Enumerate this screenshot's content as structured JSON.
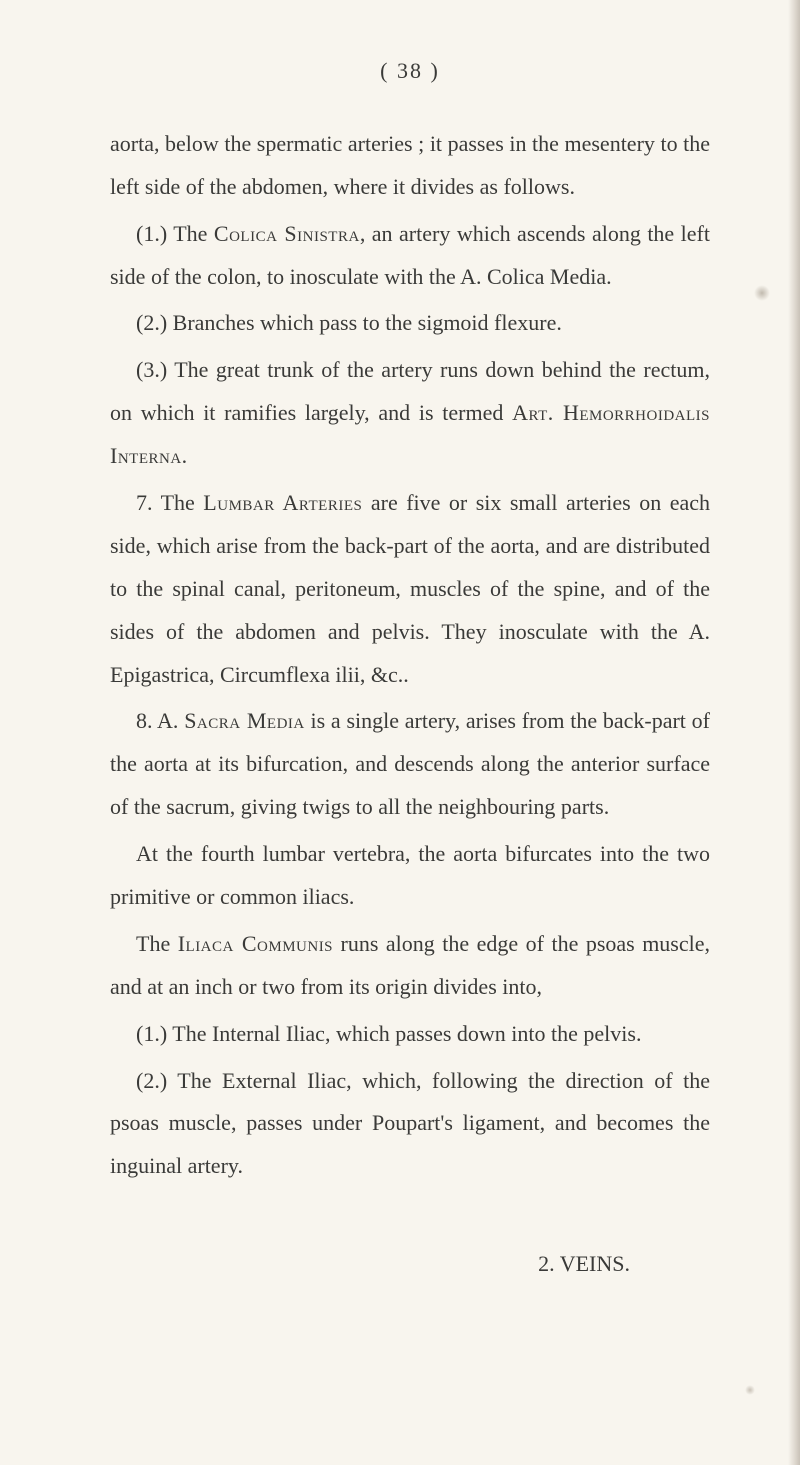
{
  "page": {
    "number_display": "(  38  )",
    "background_color": "#f8f5ee",
    "text_color": "#3a3a38",
    "font_size": 22,
    "line_height": 1.95
  },
  "paragraphs": {
    "p0": "aorta, below the spermatic arteries ; it passes in the mesentery to the left side of the abdomen, where it divides as follows.",
    "p1_open": "(1.) The ",
    "p1_sc": "Colica Sinistra",
    "p1_close": ", an artery which ascends along the left side of the colon, to inosculate with the A. Colica Media.",
    "p2": "(2.) Branches which pass to the sigmoid flexure.",
    "p3_open": "(3.) The great trunk of the artery runs down behind the rectum, on which it ramifies largely, and is termed ",
    "p3_sc": "Art. Hemorrhoidalis Interna.",
    "p4_open": "7. The ",
    "p4_sc": "Lumbar Arteries",
    "p4_close": " are five or six small arteries on each side, which arise from the back-part of the aorta, and are distributed to the spinal canal, peritoneum, muscles of the spine, and of the sides of the abdomen and pelvis. They inosculate with the A. Epigastrica, Circumflexa ilii, &c..",
    "p5_open": "8. A. ",
    "p5_sc": "Sacra Media",
    "p5_close": " is a single artery, arises from the back-part of the aorta at its bifurcation, and descends along the anterior surface of the sacrum, giving twigs to all the neighbouring parts.",
    "p6": "At the fourth lumbar vertebra, the aorta bifurcates into the two primitive or common iliacs.",
    "p7_open": "The ",
    "p7_sc": "Iliaca Communis",
    "p7_close": " runs along the edge of the psoas muscle, and at an inch or two from its origin divides into,",
    "p8": "(1.) The Internal Iliac, which passes down into the pelvis.",
    "p9": "(2.) The External Iliac, which, following the direction of the psoas muscle, passes under Poupart's ligament, and becomes the inguinal artery.",
    "footer": "2. VEINS."
  }
}
